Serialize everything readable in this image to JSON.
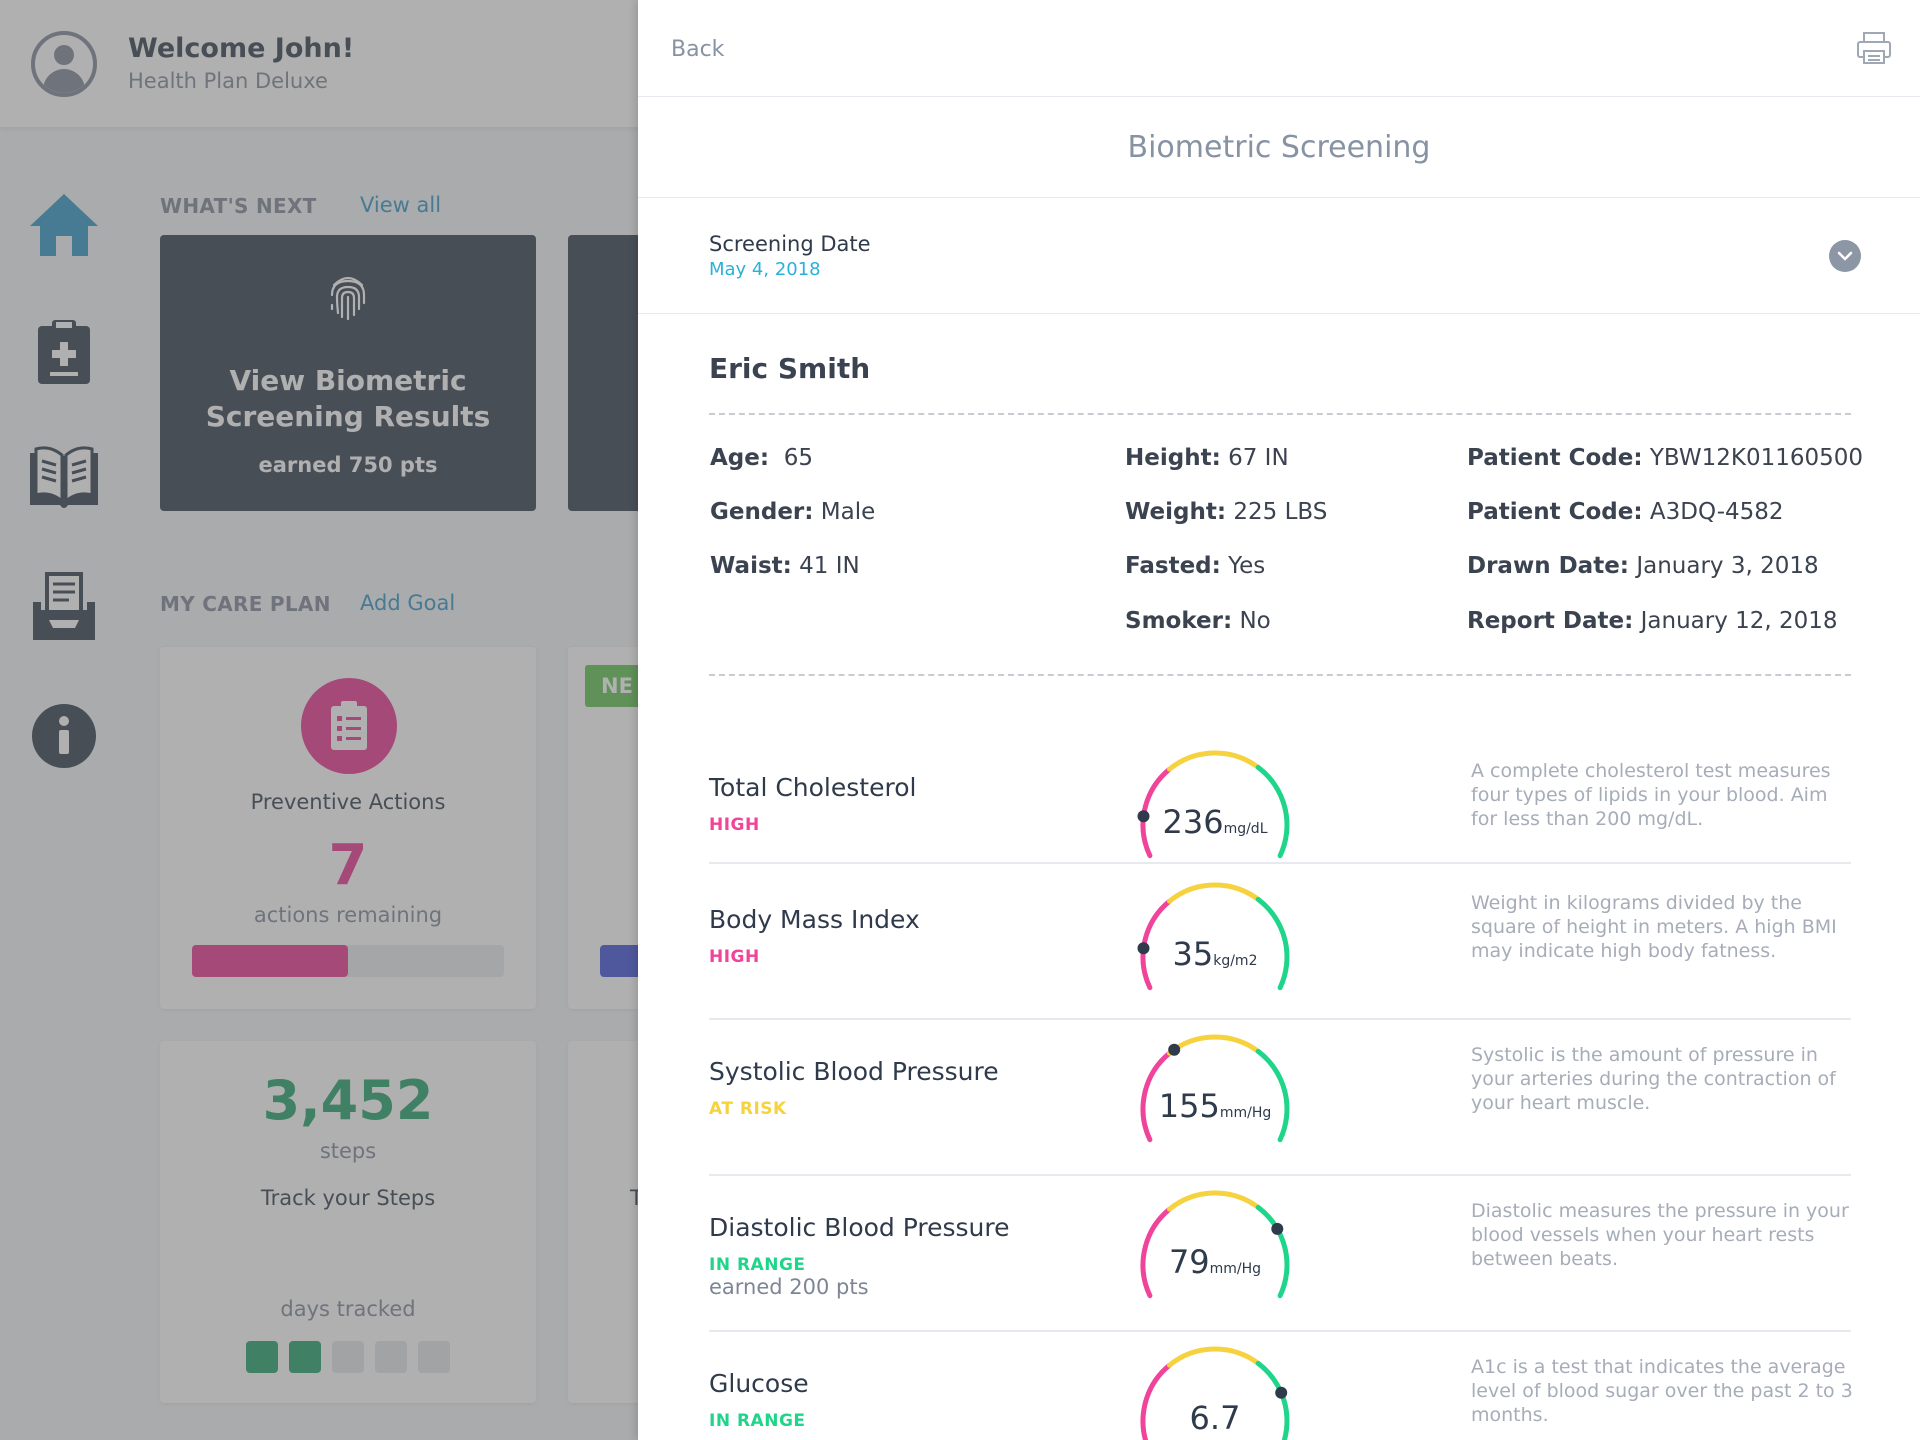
{
  "header": {
    "welcome": "Welcome John!",
    "plan": "Health Plan Deluxe"
  },
  "nav": [
    {
      "icon": "home-icon"
    },
    {
      "icon": "clipboard-medical-icon"
    },
    {
      "icon": "book-icon"
    },
    {
      "icon": "inbox-icon"
    },
    {
      "icon": "info-icon"
    }
  ],
  "whats_next": {
    "title": "WHAT'S NEXT",
    "link": "View all",
    "card": {
      "icon": "fingerprint-icon",
      "title_line1": "View Biometric",
      "title_line2": "Screening Results",
      "points": "earned 750 pts"
    }
  },
  "care_plan": {
    "title": "MY CARE PLAN",
    "link": "Add Goal",
    "preventive": {
      "icon": "clipboard-list-icon",
      "title": "Preventive Actions",
      "count": "7",
      "subtitle": "actions remaining",
      "progress": 0.5
    },
    "badge": "NE",
    "steps": {
      "count": "3,452",
      "unit": "steps",
      "title": "Track your Steps",
      "days_label": "days tracked",
      "days": [
        true,
        true,
        false,
        false,
        false
      ]
    },
    "partial_letter": "T"
  },
  "panel": {
    "back": "Back",
    "title": "Biometric Screening",
    "screening_date_label": "Screening Date",
    "screening_date": "May 4, 2018",
    "patient_name": "Eric Smith",
    "fields": {
      "age_label": "Age:",
      "age": "65",
      "gender_label": "Gender:",
      "gender": "Male",
      "waist_label": "Waist:",
      "waist": "41 IN",
      "height_label": "Height:",
      "height": "67 IN",
      "weight_label": "Weight:",
      "weight": "225 LBS",
      "fasted_label": "Fasted:",
      "fasted": "Yes",
      "smoker_label": "Smoker:",
      "smoker": "No",
      "code1_label": "Patient Code:",
      "code1": "YBW12K01160500",
      "code2_label": "Patient Code:",
      "code2": "A3DQ-4582",
      "drawn_label": "Drawn Date:",
      "drawn": "January 3, 2018",
      "report_label": "Report Date:",
      "report": "January 12, 2018"
    },
    "metrics": [
      {
        "name": "Total Cholesterol",
        "status": "HIGH",
        "points": "",
        "value": "236",
        "unit": "mg/dL",
        "needle": 0.14,
        "description": "A complete cholesterol test measures four types of lipids in your blood. Aim for less than 200 mg/dL."
      },
      {
        "name": "Body Mass Index",
        "status": "HIGH",
        "points": "",
        "value": "35",
        "unit": "kg/m2",
        "needle": 0.14,
        "description": "Weight in kilograms divided by the square of height in meters.  A high BMI may indicate high body fatness."
      },
      {
        "name": "Systolic Blood Pressure",
        "status": "AT RISK",
        "points": "",
        "value": "155",
        "unit": "mm/Hg",
        "needle": 0.35,
        "description": "Systolic is the amount of pressure in your arteries during the contraction of your heart muscle."
      },
      {
        "name": "Diastolic Blood Pressure",
        "status": "IN RANGE",
        "points": "earned 200 pts",
        "value": "79",
        "unit": "mm/Hg",
        "needle": 0.76,
        "description": "Diastolic measures the pressure in your blood vessels when your heart rests between beats."
      },
      {
        "name": "Glucose",
        "status": "IN RANGE",
        "points": "",
        "value": "6.7",
        "unit": "",
        "needle": 0.79,
        "description": "A1c is a test that indicates the average level of blood sugar over the past 2 to 3 months."
      }
    ],
    "colors": {
      "high": "#f0449b",
      "risk": "#f6d23e",
      "ok": "#1fd58a"
    }
  }
}
